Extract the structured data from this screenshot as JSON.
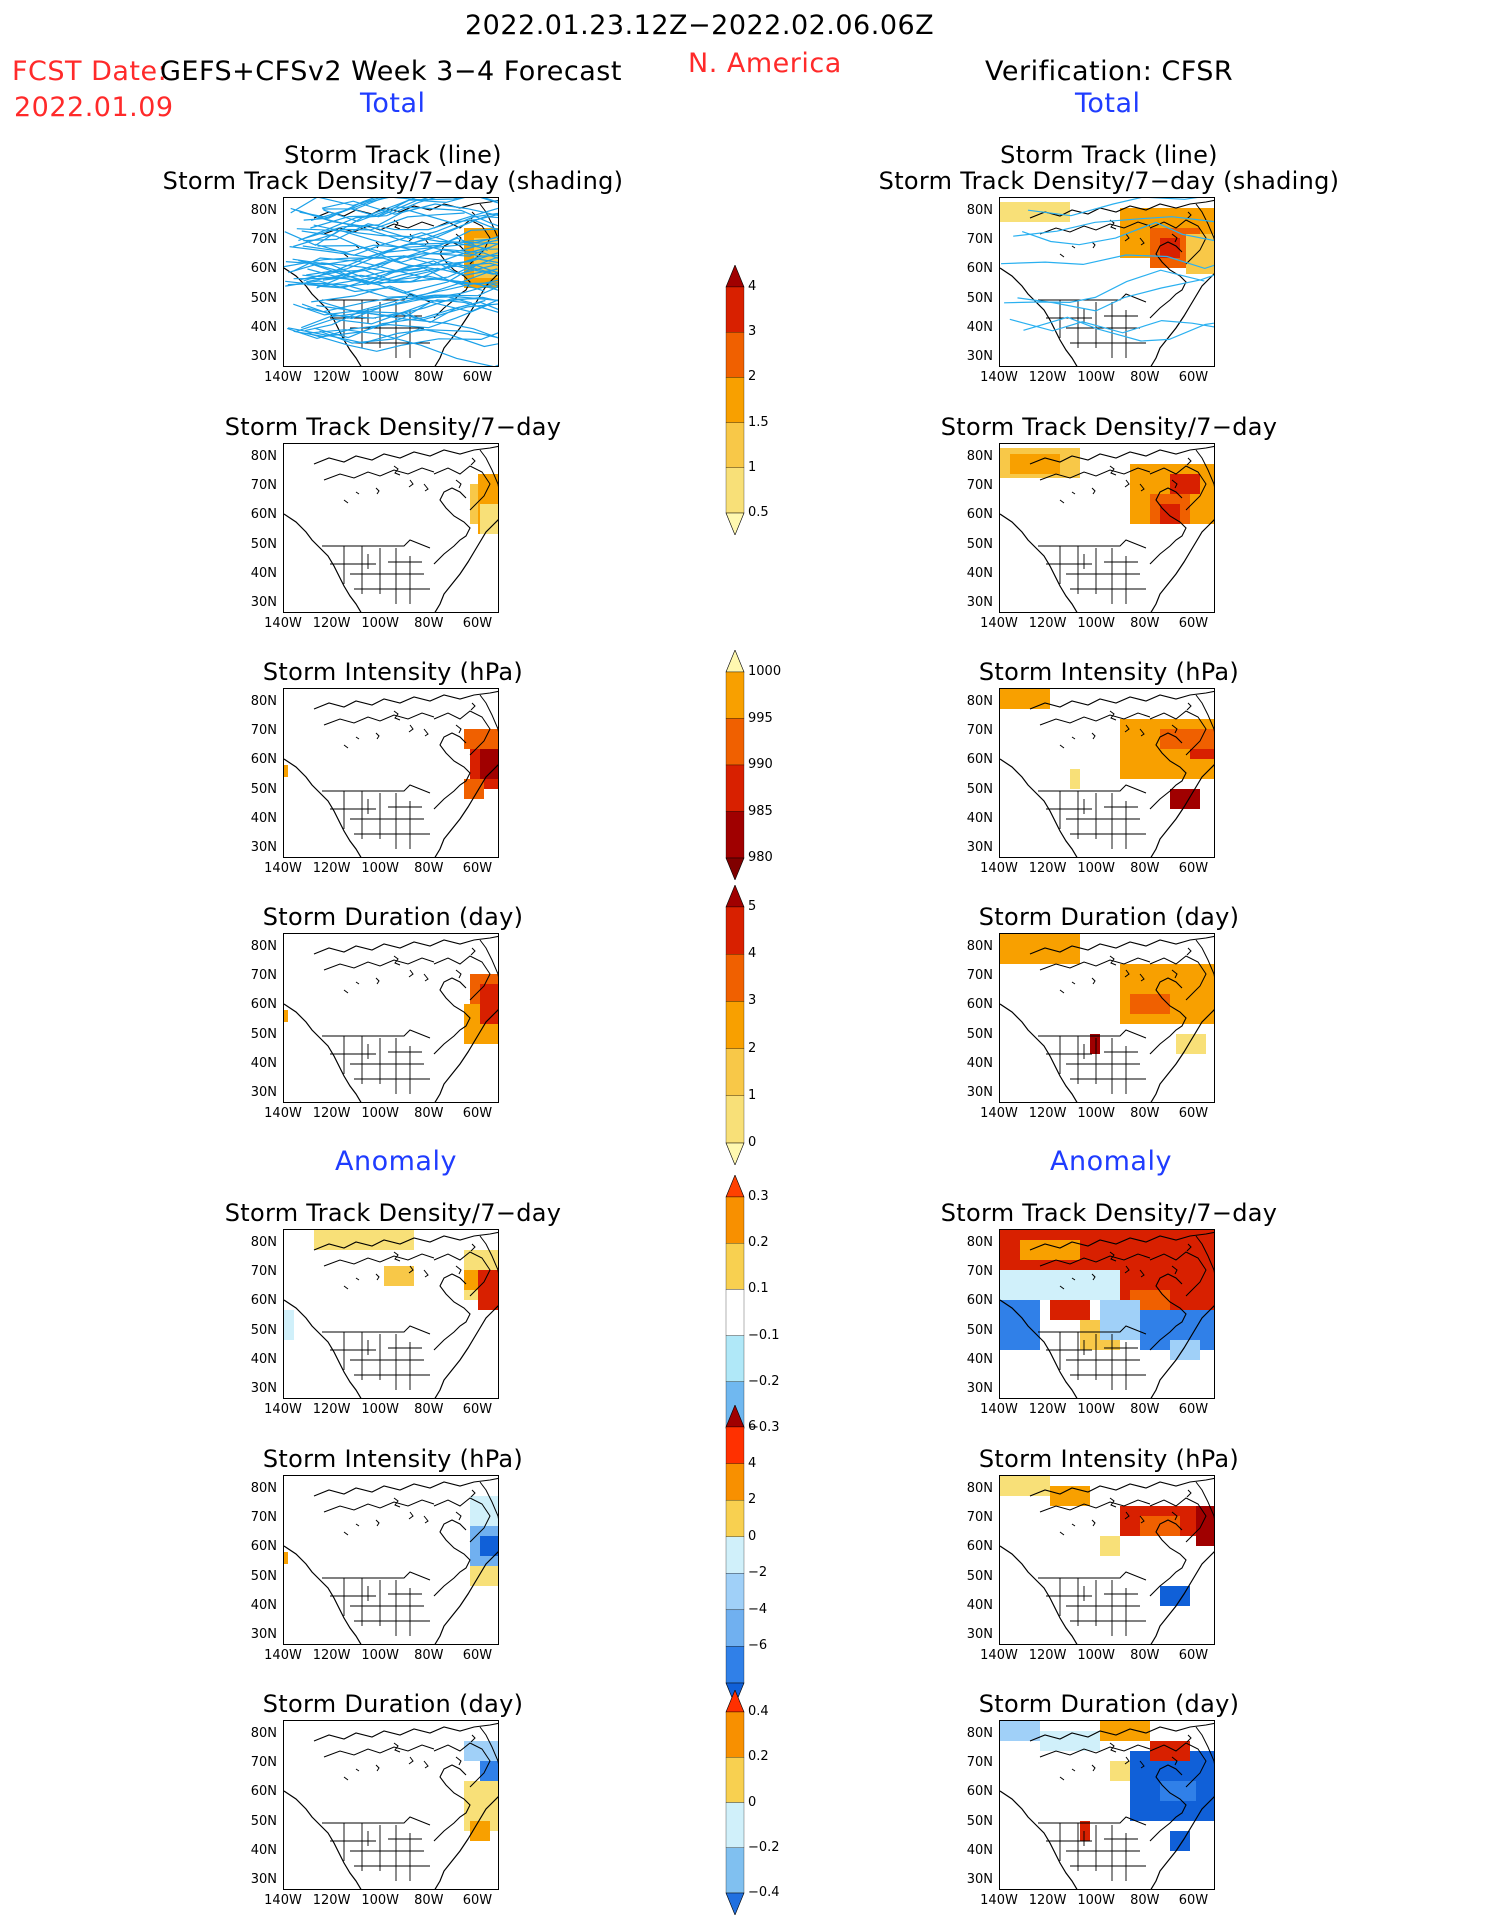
{
  "header": {
    "period": "2022.01.23.12Z−2022.02.06.06Z",
    "fcst_label": "FCST Date:",
    "fcst_model": "GEFS+CFSv2 Week 3−4 Forecast",
    "fcst_date": "2022.01.09",
    "region": "N. America",
    "verification": "Verification: CFSR",
    "left_total": "Total",
    "right_total": "Total",
    "left_anomaly": "Anomaly",
    "right_anomaly": "Anomaly"
  },
  "panel_titles": {
    "track_line": "Storm Track (line)",
    "track_shading": "Storm Track Density/7−day (shading)",
    "density": "Storm Track Density/7−day",
    "intensity": "Storm Intensity (hPa)",
    "duration": "Storm Duration (day)"
  },
  "axes": {
    "lat_ticks": [
      "80N",
      "70N",
      "60N",
      "50N",
      "40N",
      "30N"
    ],
    "lon_ticks": [
      "140W",
      "120W",
      "100W",
      "80W",
      "60W"
    ]
  },
  "colorbars": {
    "density_total": {
      "labels": [
        "4",
        "3",
        "2",
        "1.5",
        "1",
        "0.5"
      ],
      "colors": [
        "#a00000",
        "#d82000",
        "#f06000",
        "#f8a000",
        "#f8c848",
        "#f8e078",
        "#fff8b0"
      ]
    },
    "intensity_total": {
      "labels": [
        "1000",
        "995",
        "990",
        "985",
        "980"
      ],
      "colors": [
        "#fff8b0",
        "#f8a000",
        "#f06000",
        "#d82000",
        "#a00000",
        "#800000"
      ]
    },
    "duration_total": {
      "labels": [
        "5",
        "4",
        "3",
        "2",
        "1",
        "0"
      ],
      "colors": [
        "#a00000",
        "#d82000",
        "#f06000",
        "#f8a000",
        "#f8c848",
        "#f8e078",
        "#fff8b0"
      ]
    },
    "density_anom": {
      "labels": [
        "0.3",
        "0.2",
        "0.1",
        "−0.1",
        "−0.2",
        "−0.3"
      ],
      "colors": [
        "#ff4000",
        "#f89000",
        "#f8d050",
        "#ffffff",
        "#b0e8f8",
        "#70b8f0",
        "#2070e0"
      ]
    },
    "intensity_anom": {
      "labels": [
        "6",
        "4",
        "2",
        "0",
        "−2",
        "−4",
        "−6"
      ],
      "colors": [
        "#a00000",
        "#ff3000",
        "#f89000",
        "#f8d050",
        "#d0f0fa",
        "#a0d0f8",
        "#70b0f0",
        "#3080e8",
        "#1060d8"
      ]
    },
    "duration_anom": {
      "labels": [
        "0.4",
        "0.2",
        "0",
        "−0.2",
        "−0.4"
      ],
      "colors": [
        "#ff3000",
        "#f89000",
        "#f8d050",
        "#d0f0fa",
        "#80c0f0",
        "#2070e0"
      ]
    }
  }
}
